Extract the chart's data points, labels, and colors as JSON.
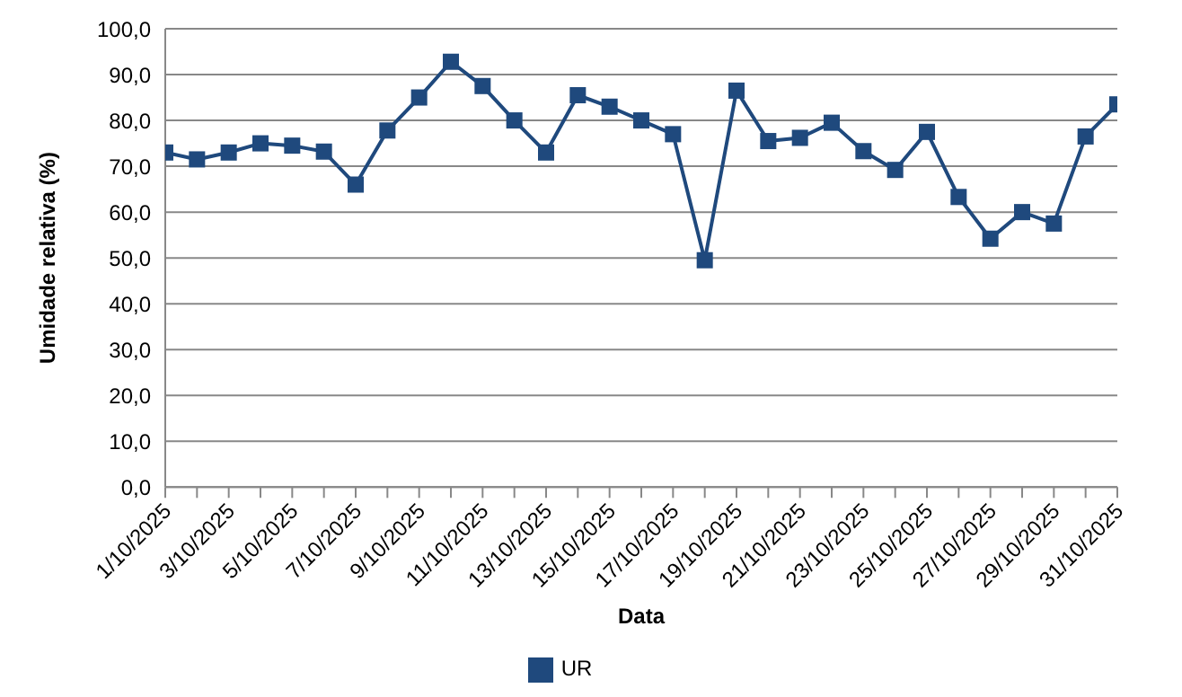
{
  "chart_data": {
    "type": "line",
    "xlabel": "Data",
    "ylabel": "Umidade relativa (%)",
    "categories": [
      "1/10/2025",
      null,
      "3/10/2025",
      null,
      "5/10/2025",
      null,
      "7/10/2025",
      null,
      "9/10/2025",
      null,
      "11/10/2025",
      null,
      "13/10/2025",
      null,
      "15/10/2025",
      null,
      "17/10/2025",
      null,
      "19/10/2025",
      null,
      "21/10/2025",
      null,
      "23/10/2025",
      null,
      "25/10/2025",
      null,
      "27/10/2025",
      null,
      "29/10/2025",
      null,
      "31/10/2025"
    ],
    "series": [
      {
        "name": "UR",
        "color": "#1f497d",
        "values": [
          73,
          71.5,
          73,
          75,
          74.5,
          73.2,
          66,
          77.8,
          85,
          92.8,
          87.5,
          80,
          73,
          85.5,
          83,
          80,
          77,
          49.5,
          86.5,
          75.5,
          76.2,
          79.5,
          73.3,
          69.2,
          77.5,
          63.3,
          54.2,
          60,
          57.5,
          76.5,
          83.5
        ]
      }
    ],
    "ylim": [
      0,
      100
    ],
    "yticks": [
      {
        "value": 0,
        "label": "0,0"
      },
      {
        "value": 10,
        "label": "10,0"
      },
      {
        "value": 20,
        "label": "20,0"
      },
      {
        "value": 30,
        "label": "30,0"
      },
      {
        "value": 40,
        "label": "40,0"
      },
      {
        "value": 50,
        "label": "50,0"
      },
      {
        "value": 60,
        "label": "60,0"
      },
      {
        "value": 70,
        "label": "70,0"
      },
      {
        "value": 80,
        "label": "80,0"
      },
      {
        "value": 90,
        "label": "90,0"
      },
      {
        "value": 100,
        "label": "100,0"
      }
    ],
    "grid": "y",
    "legend": "bottom",
    "marker": "square",
    "line_style": "solid"
  }
}
